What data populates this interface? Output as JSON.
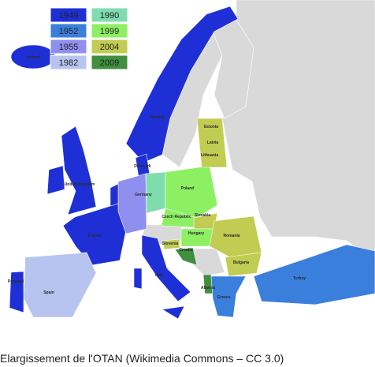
{
  "legend": {
    "items": [
      {
        "year": "1949",
        "color": "#1f2fd6"
      },
      {
        "year": "1952",
        "color": "#3b7fdc"
      },
      {
        "year": "1955",
        "color": "#8f8ff0"
      },
      {
        "year": "1982",
        "color": "#b8c4f0"
      },
      {
        "year": "1990",
        "color": "#7fdcae"
      },
      {
        "year": "1999",
        "color": "#8cf062"
      },
      {
        "year": "2004",
        "color": "#c2cc52"
      },
      {
        "year": "2009",
        "color": "#3f8f3f"
      }
    ]
  },
  "map": {
    "countries": [
      "Iceland",
      "Norway",
      "Denmark",
      "United Kingdom",
      "France",
      "Portugal",
      "Spain",
      "Germany",
      "Poland",
      "Czech Republic",
      "Slovakia",
      "Hungary",
      "Slovenia",
      "Croatia",
      "Italy",
      "Albania",
      "Greece",
      "Bulgaria",
      "Romania",
      "Turkey",
      "Estonia",
      "Latvia",
      "Lithuania"
    ]
  },
  "caption": "Elargissement de l'OTAN (Wikimedia Commons – CC 3.0)"
}
